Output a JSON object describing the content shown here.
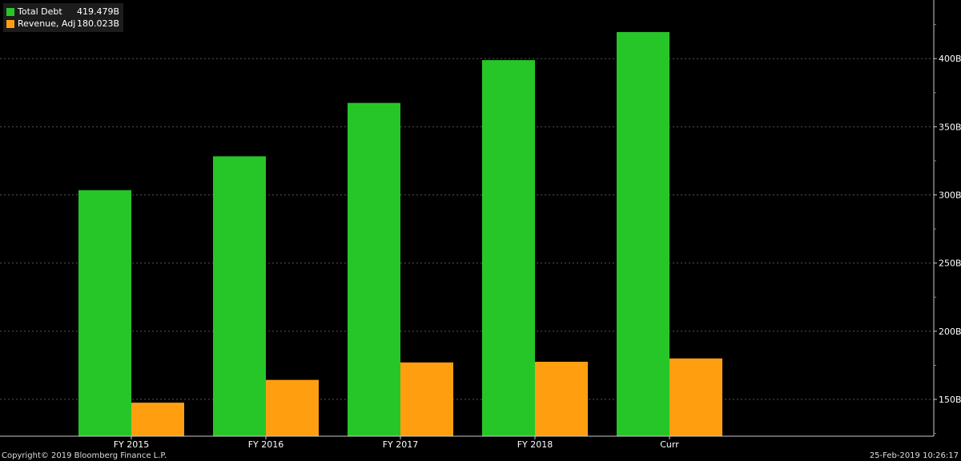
{
  "chart_data": {
    "type": "bar",
    "categories": [
      "FY 2015",
      "FY 2016",
      "FY 2017",
      "FY 2018",
      "Curr"
    ],
    "series": [
      {
        "name": "Total Debt",
        "legend_value": "419.479B",
        "color": "#27c628",
        "values": [
          303.5,
          328.3,
          367.5,
          398.9,
          419.479
        ]
      },
      {
        "name": "Revenue, Adj",
        "legend_value": "180.023B",
        "color": "#ff9f10",
        "values": [
          147.6,
          164.3,
          177.1,
          177.6,
          180.023
        ]
      }
    ],
    "ylim": [
      123,
      443
    ],
    "yticks": [
      150,
      200,
      250,
      300,
      350,
      400
    ],
    "ytick_labels": [
      "150B",
      "200B",
      "250B",
      "300B",
      "350B",
      "400B"
    ],
    "grid": true,
    "grid_color": "#555555",
    "background": "#000000"
  },
  "footer": {
    "copyright": "Copyright© 2019 Bloomberg Finance L.P.",
    "timestamp": "25-Feb-2019 10:26:17"
  }
}
